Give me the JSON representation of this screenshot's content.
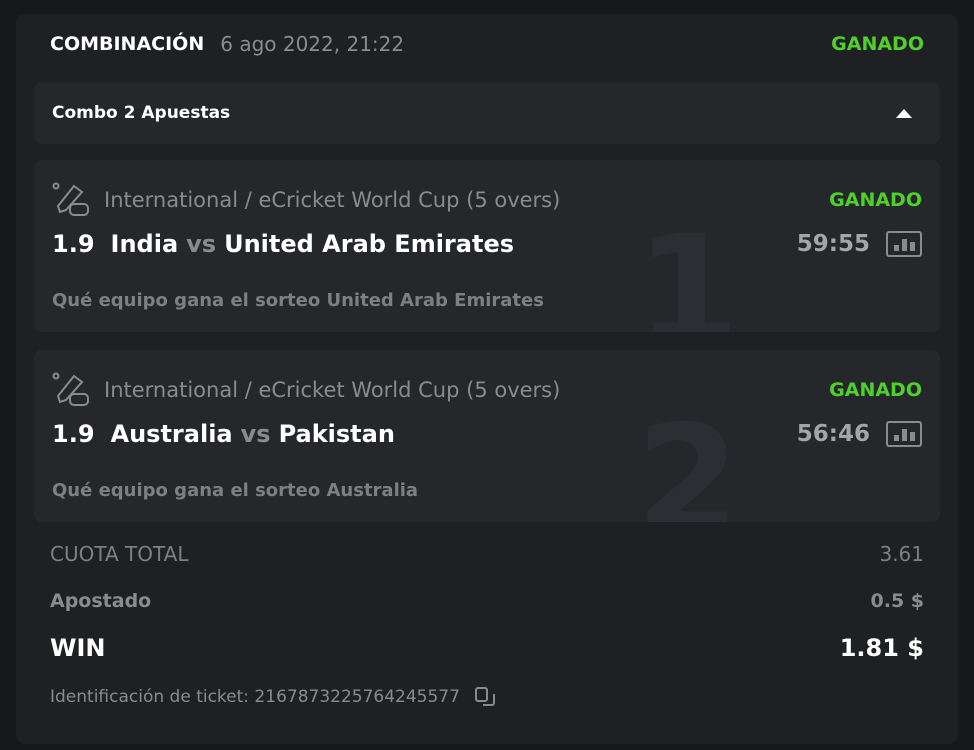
{
  "header": {
    "title": "COMBINACIÓN",
    "date": "6 ago 2022, 21:22",
    "status": "GANADO"
  },
  "combo": {
    "label": "Combo 2 Apuestas"
  },
  "bets": [
    {
      "index": "1",
      "league": "International / eCricket World Cup (5 overs)",
      "status": "GANADO",
      "odd": "1.9",
      "home": "India",
      "vs": "vs",
      "away": "United Arab Emirates",
      "time": "59:55",
      "market": "Qué equipo gana el sorteo United Arab Emirates"
    },
    {
      "index": "2",
      "league": "International / eCricket World Cup (5 overs)",
      "status": "GANADO",
      "odd": "1.9",
      "home": "Australia",
      "vs": "vs",
      "away": "Pakistan",
      "time": "56:46",
      "market": "Qué equipo gana el sorteo Australia"
    }
  ],
  "summary": {
    "total_odds_label": "CUOTA TOTAL",
    "total_odds": "3.61",
    "stake_label": "Apostado",
    "stake": "0.5 $",
    "win_label": "WIN",
    "win": "1.81 $",
    "ticket_label": "Identificación de ticket: 2167873225764245577"
  },
  "colors": {
    "win": "#4fd12b",
    "background": "#1f2024"
  }
}
